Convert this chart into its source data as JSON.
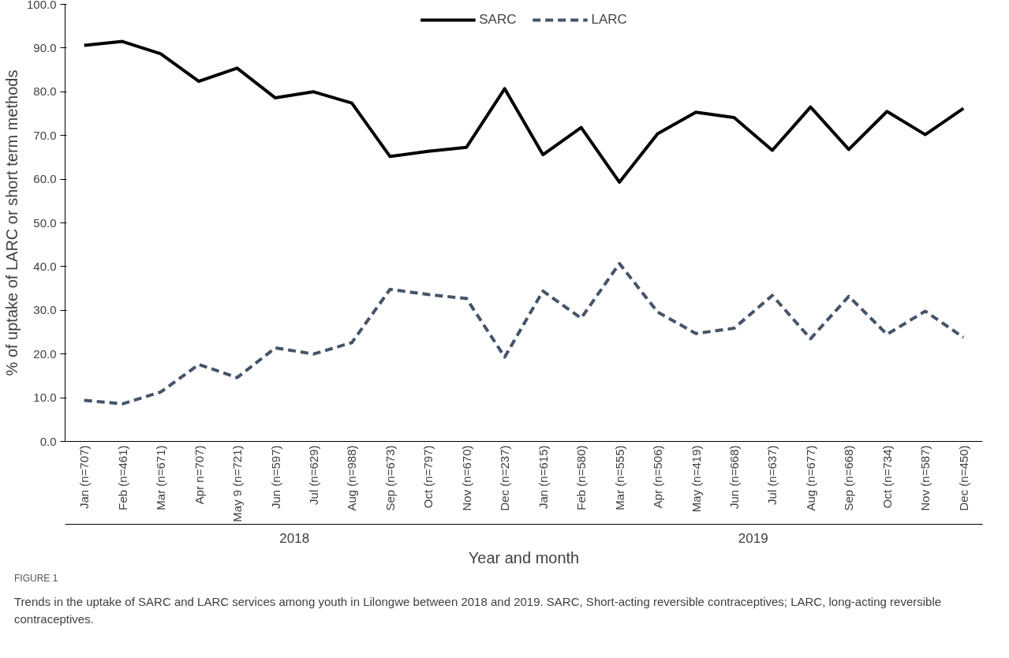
{
  "chart_data": {
    "type": "line",
    "xlabel": "Year and month",
    "ylabel": "% of uptake of LARC or short term methods",
    "categories": [
      "Jan (n=707)",
      "Feb (n=461)",
      "Mar (n=671)",
      "Apr n=707)",
      "May 9 (n=721)",
      "Jun (n=597)",
      "Jul (n=629)",
      "Aug (n=988)",
      "Sep (n=673)",
      "Oct (n=797)",
      "Nov (n=670)",
      "Dec (n=237)",
      "Jan (n=615)",
      "Feb (n=580)",
      "Mar (n=555)",
      "Apr (n=506)",
      "May (n=419)",
      "Jun (n=668)",
      "Jul (n=637)",
      "Aug (n=677)",
      "Sep (n=668)",
      "Oct (n=734)",
      "Nov (n=587)",
      "Dec (n=450)"
    ],
    "series": [
      {
        "name": "SARC",
        "color": "#000000",
        "line_style": "solid",
        "values": [
          90.6,
          91.5,
          88.7,
          82.4,
          85.4,
          78.6,
          80.0,
          77.4,
          65.2,
          66.4,
          67.3,
          80.7,
          65.6,
          71.8,
          59.3,
          70.4,
          75.3,
          74.1,
          66.6,
          76.5,
          66.8,
          75.5,
          70.2,
          76.2
        ]
      },
      {
        "name": "LARC",
        "color": "#44546a",
        "line_style": "dashed",
        "values": [
          9.4,
          8.6,
          11.3,
          17.6,
          14.6,
          21.4,
          20.0,
          22.6,
          34.8,
          33.6,
          32.7,
          19.3,
          34.4,
          28.2,
          40.7,
          29.6,
          24.7,
          25.9,
          33.4,
          23.5,
          33.2,
          24.5,
          29.8,
          23.8
        ]
      }
    ],
    "ylim": [
      0,
      100
    ],
    "yticks": [
      {
        "value": 0,
        "label": "0.0"
      },
      {
        "value": 10,
        "label": "10.0"
      },
      {
        "value": 20,
        "label": "20.0"
      },
      {
        "value": 30,
        "label": "30.0"
      },
      {
        "value": 40,
        "label": "40.0"
      },
      {
        "value": 50,
        "label": "50.0"
      },
      {
        "value": 60,
        "label": "60.0"
      },
      {
        "value": 70,
        "label": "70.0"
      },
      {
        "value": 80,
        "label": "80.0"
      },
      {
        "value": 90,
        "label": "90.0"
      },
      {
        "value": 100,
        "label": "100.0"
      }
    ],
    "grid": false,
    "legend": "top",
    "marker": "none",
    "annotations": [
      "2018",
      "2019",
      "FIGURE 1",
      "Trends in the uptake of SARC and LARC services among youth in Lilongwe between 2018 and 2019. SARC, Short-acting reversible contraceptives; LARC, long-acting reversible contraceptives."
    ]
  }
}
